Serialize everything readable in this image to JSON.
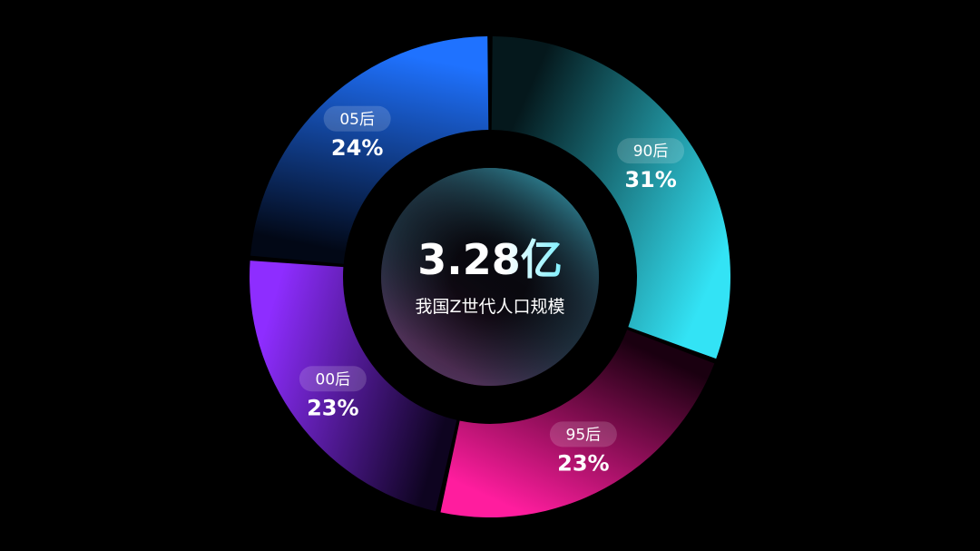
{
  "chart_data": {
    "type": "pie",
    "donut": true,
    "center_value": "3.28亿",
    "center_label": "我国Z世代人口规模",
    "start": "12 o'clock, clockwise",
    "slices": [
      {
        "label": "90后",
        "value": 31,
        "value_label": "31%",
        "color_dark": "#05181c",
        "color_light": "#33e3f5"
      },
      {
        "label": "95后",
        "value": 23,
        "value_label": "23%",
        "color_dark": "#1a0010",
        "color_light": "#ff1d9e"
      },
      {
        "label": "00后",
        "value": 23,
        "value_label": "23%",
        "color_dark": "#0e0420",
        "color_light": "#8e2dff"
      },
      {
        "label": "05后",
        "value": 24,
        "value_label": "24%",
        "color_dark": "#020816",
        "color_light": "#1f72ff"
      }
    ]
  }
}
